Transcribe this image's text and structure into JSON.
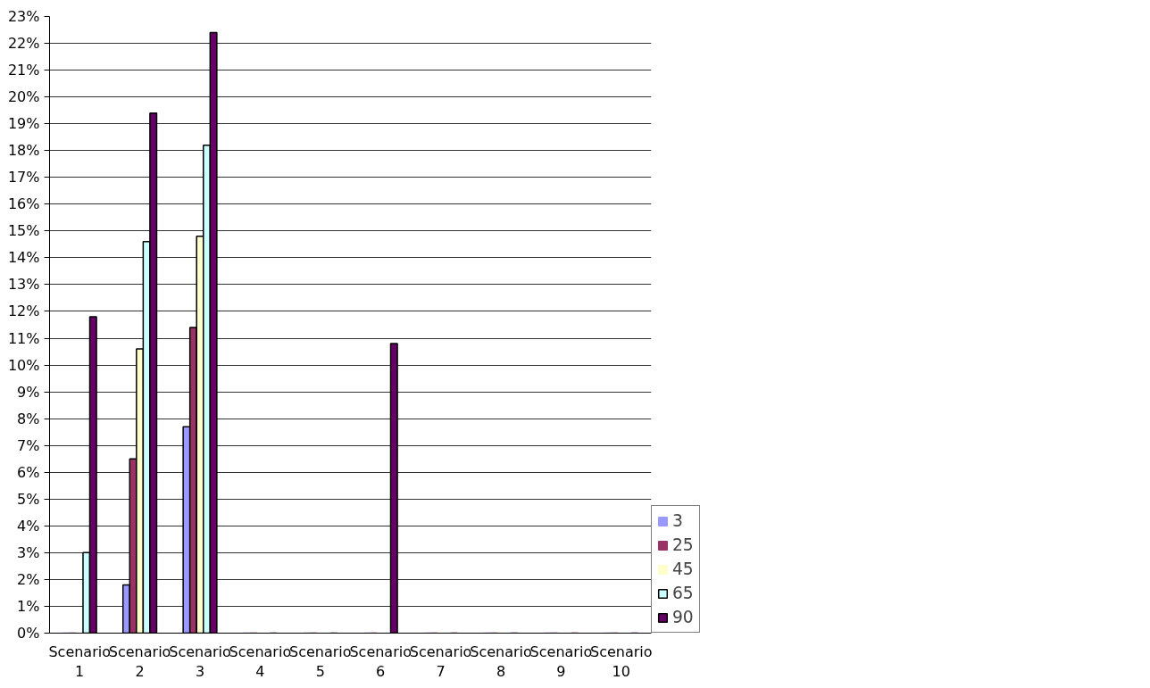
{
  "chart_data": {
    "type": "bar",
    "categories": [
      "Scenario 1",
      "Scenario 2",
      "Scenario 3",
      "Scenario 4",
      "Scenario 5",
      "Scenario 6",
      "Scenario 7",
      "Scenario 8",
      "Scenario 9",
      "Scenario 10"
    ],
    "series": [
      {
        "name": "3",
        "color": "#9999ff",
        "values": [
          0,
          1.8,
          7.7,
          0,
          0,
          0,
          0,
          0,
          0,
          0
        ]
      },
      {
        "name": "25",
        "color": "#993366",
        "values": [
          0,
          6.5,
          11.4,
          0,
          0,
          0,
          0,
          0,
          0,
          0
        ]
      },
      {
        "name": "45",
        "color": "#ffffcc",
        "values": [
          0,
          10.6,
          14.8,
          0,
          0,
          0,
          0,
          0,
          0,
          0
        ]
      },
      {
        "name": "65",
        "color": "#ccffff",
        "values": [
          3.0,
          14.6,
          18.2,
          0,
          0,
          0,
          0,
          0,
          0,
          0
        ]
      },
      {
        "name": "90",
        "color": "#660066",
        "values": [
          11.8,
          19.4,
          22.4,
          0,
          0,
          10.8,
          0,
          0,
          0,
          0
        ]
      }
    ],
    "ylim": [
      0,
      23
    ],
    "yticks": [
      {
        "value": 0,
        "label": "0%"
      },
      {
        "value": 1,
        "label": "1%"
      },
      {
        "value": 2,
        "label": "2%"
      },
      {
        "value": 3,
        "label": "3%"
      },
      {
        "value": 4,
        "label": "4%"
      },
      {
        "value": 5,
        "label": "5%"
      },
      {
        "value": 6,
        "label": "6%"
      },
      {
        "value": 7,
        "label": "7%"
      },
      {
        "value": 8,
        "label": "8%"
      },
      {
        "value": 9,
        "label": "9%"
      },
      {
        "value": 10,
        "label": "10%"
      },
      {
        "value": 11,
        "label": "11%"
      },
      {
        "value": 12,
        "label": "12%"
      },
      {
        "value": 13,
        "label": "13%"
      },
      {
        "value": 14,
        "label": "14%"
      },
      {
        "value": 15,
        "label": "15%"
      },
      {
        "value": 16,
        "label": "16%"
      },
      {
        "value": 17,
        "label": "17%"
      },
      {
        "value": 18,
        "label": "18%"
      },
      {
        "value": 19,
        "label": "19%"
      },
      {
        "value": 20,
        "label": "20%"
      },
      {
        "value": 21,
        "label": "21%"
      },
      {
        "value": 22,
        "label": "22%"
      },
      {
        "value": 23,
        "label": "23%"
      }
    ],
    "grid": "y",
    "legend": "right"
  }
}
